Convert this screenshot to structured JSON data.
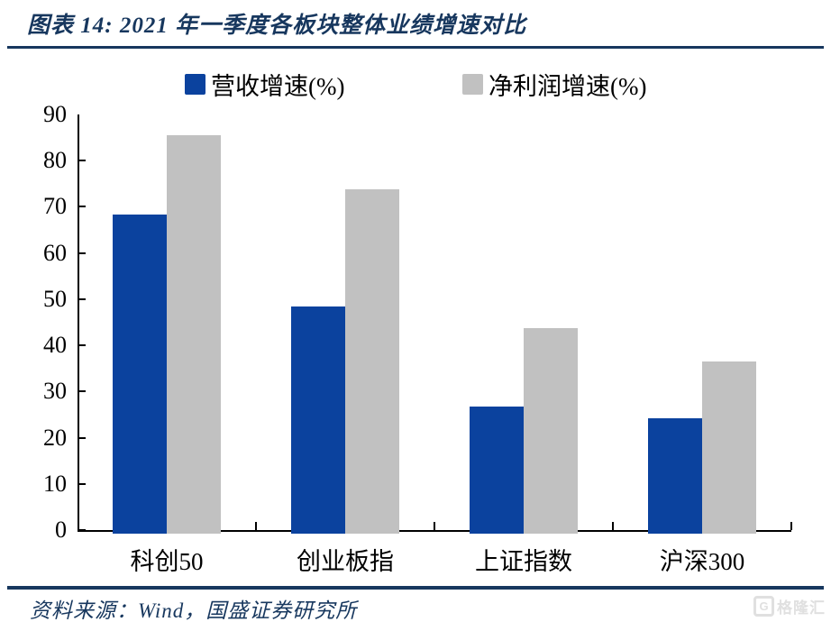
{
  "figure": {
    "title": "图表 14:  2021 年一季度各板块整体业绩增速对比",
    "source": "资料来源：Wind，国盛证券研究所",
    "watermark": "格隆汇",
    "watermark_icon": "G"
  },
  "colors": {
    "revenue": "#0b429e",
    "profit": "#c1c1c1",
    "accent": "#17375e",
    "axis": "#000000"
  },
  "chart_data": {
    "type": "bar",
    "title": "2021 年一季度各板块整体业绩增速对比",
    "categories": [
      "科创50",
      "创业板指",
      "上证指数",
      "沪深300"
    ],
    "series": [
      {
        "name": "营收增速(%)",
        "color_key": "revenue",
        "values": [
          68.3,
          48.5,
          26.8,
          24.3
        ]
      },
      {
        "name": "净利润增速(%)",
        "color_key": "profit",
        "values": [
          85.6,
          73.7,
          43.7,
          36.5
        ]
      }
    ],
    "xlabel": "",
    "ylabel": "",
    "ylim": [
      0,
      90
    ],
    "ytick_step": 10,
    "grid": false,
    "legend_position": "top"
  }
}
